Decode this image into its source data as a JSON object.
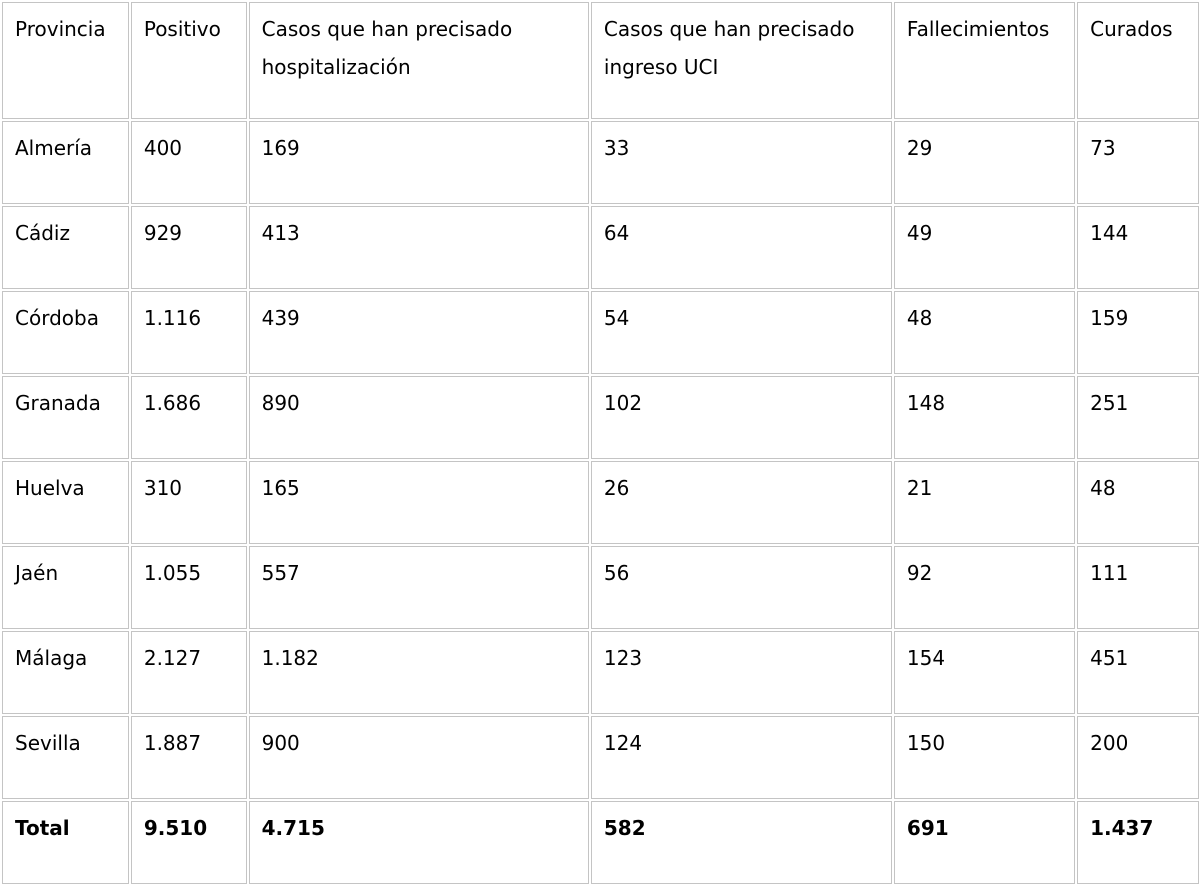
{
  "table": {
    "columns": [
      "Provincia",
      "Positivo",
      "Casos que han precisado hospitalización",
      "Casos que han precisado ingreso UCI",
      "Fallecimientos",
      "Curados"
    ],
    "rows": [
      [
        "Almería",
        "400",
        "169",
        "33",
        "29",
        "73"
      ],
      [
        "Cádiz",
        "929",
        "413",
        "64",
        "49",
        "144"
      ],
      [
        "Córdoba",
        "1.116",
        "439",
        "54",
        "48",
        "159"
      ],
      [
        "Granada",
        "1.686",
        "890",
        "102",
        "148",
        "251"
      ],
      [
        "Huelva",
        "310",
        "165",
        "26",
        "21",
        "48"
      ],
      [
        "Jaén",
        "1.055",
        "557",
        "56",
        "92",
        "111"
      ],
      [
        "Málaga",
        "2.127",
        "1.182",
        "123",
        "154",
        "451"
      ],
      [
        "Sevilla",
        "1.887",
        "900",
        "124",
        "150",
        "200"
      ]
    ],
    "total_row": [
      "Total",
      "9.510",
      "4.715",
      "582",
      "691",
      "1.437"
    ],
    "colors": {
      "border": "#c4c4c4",
      "text": "#000000",
      "background": "#ffffff"
    }
  }
}
